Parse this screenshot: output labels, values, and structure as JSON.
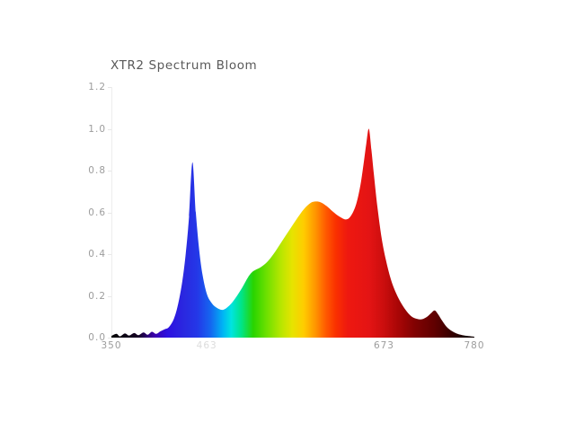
{
  "window": {
    "background": "#ffffff"
  },
  "chart": {
    "title": "XTR2 Spectrum Bloom",
    "title_color": "#595959",
    "tick_color": "#9c9c9c",
    "muted_tick_color": "#dcdcdc",
    "axis_line_color": "#ededed"
  },
  "chart_data": {
    "type": "area",
    "title": "XTR2 Spectrum Bloom",
    "xlabel": "",
    "ylabel": "",
    "xlim": [
      350,
      780
    ],
    "ylim": [
      0,
      1.2
    ],
    "grid": false,
    "legend": false,
    "xticks": [
      {
        "label": "350",
        "value": 350,
        "muted": false
      },
      {
        "label": "463",
        "value": 463,
        "muted": true
      },
      {
        "label": "673",
        "value": 673,
        "muted": false
      },
      {
        "label": "780",
        "value": 780,
        "muted": false
      }
    ],
    "yticks": [
      0.0,
      0.2,
      0.4,
      0.6,
      0.8,
      1.0,
      1.2
    ],
    "x_wavelength_nm": [
      350,
      356,
      360,
      366,
      371,
      377,
      382,
      388,
      393,
      398,
      403,
      408,
      413,
      418,
      424,
      429,
      434,
      438,
      442,
      446,
      450,
      454,
      458,
      463,
      468,
      474,
      482,
      490,
      497,
      505,
      512,
      518,
      526,
      534,
      542,
      551,
      560,
      569,
      578,
      586,
      592,
      598,
      605,
      612,
      620,
      628,
      634,
      640,
      645,
      649,
      652,
      655,
      658,
      661,
      665,
      670,
      675,
      681,
      687,
      694,
      700,
      706,
      712,
      718,
      724,
      729,
      733,
      737,
      742,
      747,
      753,
      760,
      768,
      780
    ],
    "y_intensity": [
      0.008,
      0.018,
      0.006,
      0.02,
      0.01,
      0.022,
      0.012,
      0.025,
      0.014,
      0.028,
      0.018,
      0.03,
      0.04,
      0.05,
      0.09,
      0.16,
      0.27,
      0.4,
      0.58,
      0.84,
      0.6,
      0.42,
      0.3,
      0.21,
      0.17,
      0.145,
      0.133,
      0.155,
      0.19,
      0.24,
      0.29,
      0.318,
      0.335,
      0.36,
      0.4,
      0.455,
      0.51,
      0.565,
      0.615,
      0.645,
      0.652,
      0.648,
      0.63,
      0.605,
      0.58,
      0.566,
      0.585,
      0.64,
      0.73,
      0.84,
      0.93,
      1.0,
      0.9,
      0.78,
      0.63,
      0.48,
      0.375,
      0.28,
      0.215,
      0.16,
      0.125,
      0.1,
      0.09,
      0.088,
      0.1,
      0.118,
      0.13,
      0.112,
      0.08,
      0.052,
      0.032,
      0.018,
      0.01,
      0.004
    ],
    "peaks": [
      {
        "wavelength": 446,
        "intensity": 0.84,
        "note": "blue peak"
      },
      {
        "wavelength": 592,
        "intensity": 0.65,
        "note": "orange hump"
      },
      {
        "wavelength": 655,
        "intensity": 1.0,
        "note": "red peak (max)"
      },
      {
        "wavelength": 733,
        "intensity": 0.13,
        "note": "far-red bump"
      }
    ],
    "gradient_stops": [
      {
        "wavelength": 350,
        "color": "#050505"
      },
      {
        "wavelength": 382,
        "color": "#140024"
      },
      {
        "wavelength": 400,
        "color": "#3a00a8"
      },
      {
        "wavelength": 416,
        "color": "#2e10e0"
      },
      {
        "wavelength": 436,
        "color": "#2a28e0"
      },
      {
        "wavelength": 452,
        "color": "#2438e8"
      },
      {
        "wavelength": 468,
        "color": "#1468f0"
      },
      {
        "wavelength": 482,
        "color": "#00b4f4"
      },
      {
        "wavelength": 492,
        "color": "#00e4e0"
      },
      {
        "wavelength": 504,
        "color": "#00e488"
      },
      {
        "wavelength": 518,
        "color": "#28d400"
      },
      {
        "wavelength": 534,
        "color": "#6ee000"
      },
      {
        "wavelength": 550,
        "color": "#b4e600"
      },
      {
        "wavelength": 564,
        "color": "#e6e400"
      },
      {
        "wavelength": 578,
        "color": "#ffcc00"
      },
      {
        "wavelength": 592,
        "color": "#ff9400"
      },
      {
        "wavelength": 604,
        "color": "#ff5a00"
      },
      {
        "wavelength": 616,
        "color": "#fa3000"
      },
      {
        "wavelength": 630,
        "color": "#ee1810"
      },
      {
        "wavelength": 655,
        "color": "#e41414"
      },
      {
        "wavelength": 672,
        "color": "#cc0e0e"
      },
      {
        "wavelength": 690,
        "color": "#a80606"
      },
      {
        "wavelength": 710,
        "color": "#800202"
      },
      {
        "wavelength": 733,
        "color": "#600000"
      },
      {
        "wavelength": 752,
        "color": "#380000"
      },
      {
        "wavelength": 766,
        "color": "#1c0000"
      },
      {
        "wavelength": 780,
        "color": "#0a0000"
      }
    ]
  }
}
